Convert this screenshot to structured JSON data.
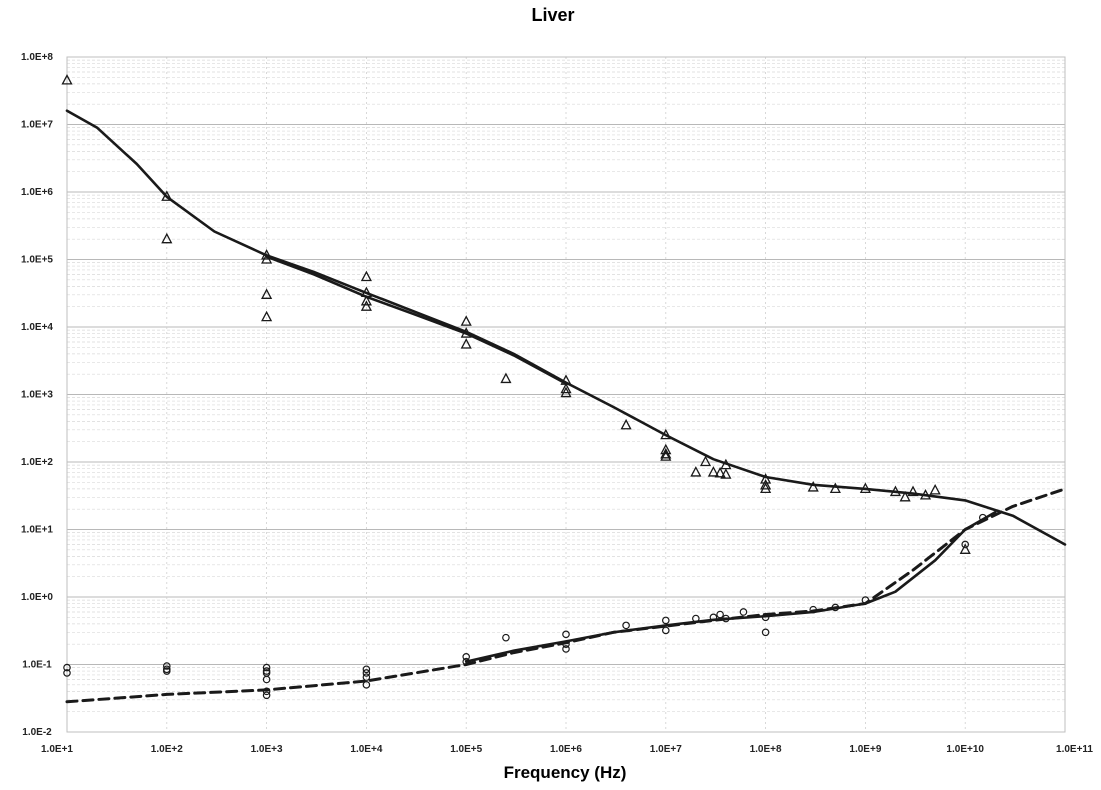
{
  "chart_data": {
    "type": "scatter",
    "title": "Liver",
    "xlabel": "Frequency (Hz)",
    "ylabel": "",
    "x_scale": "log",
    "y_scale": "log",
    "xlim": [
      10,
      100000000000
    ],
    "ylim": [
      0.01,
      100000000
    ],
    "grid": true,
    "x_ticks": [
      {
        "value": 10,
        "label": "1.0E+1"
      },
      {
        "value": 100,
        "label": "1.0E+2"
      },
      {
        "value": 1000,
        "label": "1.0E+3"
      },
      {
        "value": 10000,
        "label": "1.0E+4"
      },
      {
        "value": 100000,
        "label": "1.0E+5"
      },
      {
        "value": 1000000,
        "label": "1.0E+6"
      },
      {
        "value": 10000000,
        "label": "1.0E+7"
      },
      {
        "value": 100000000,
        "label": "1.0E+8"
      },
      {
        "value": 1000000000,
        "label": "1.0E+9"
      },
      {
        "value": 10000000000,
        "label": "1.0E+10"
      },
      {
        "value": 100000000000,
        "label": "1.0E+11"
      }
    ],
    "y_ticks": [
      {
        "value": 100000000,
        "label": "1.0E+8"
      },
      {
        "value": 10000000,
        "label": "1.0E+7"
      },
      {
        "value": 1000000,
        "label": "1.0E+6"
      },
      {
        "value": 100000,
        "label": "1.0E+5"
      },
      {
        "value": 10000,
        "label": "1.0E+4"
      },
      {
        "value": 1000,
        "label": "1.0E+3"
      },
      {
        "value": 100,
        "label": "1.0E+2"
      },
      {
        "value": 10,
        "label": "1.0E+1"
      },
      {
        "value": 1,
        "label": "1.0E+0"
      },
      {
        "value": 0.1,
        "label": "1.0E-1"
      },
      {
        "value": 0.01,
        "label": "1.0E-2"
      }
    ],
    "series": [
      {
        "kind": "model-line",
        "style": "solid",
        "color": "#1a1a1a",
        "x": [
          10,
          20,
          50,
          100,
          300,
          1000,
          3000,
          10000,
          30000,
          100000,
          300000,
          1000000,
          3000000,
          10000000,
          30000000,
          100000000,
          300000000,
          1000000000,
          3000000000,
          10000000000,
          30000000000,
          100000000000
        ],
        "y": [
          16000000,
          9000000,
          2600000,
          850000,
          260000,
          115000,
          65000,
          32000,
          17000,
          8500,
          4000,
          1500,
          650,
          250,
          110,
          60,
          46,
          40,
          34,
          27,
          16,
          6
        ]
      },
      {
        "kind": "model-line",
        "style": "solid",
        "color": "#1a1a1a",
        "x": [
          1000,
          3000,
          10000,
          30000,
          100000,
          300000,
          1000000
        ],
        "y": [
          110000,
          60000,
          28000,
          15500,
          8000,
          3800,
          1450
        ]
      },
      {
        "kind": "model-line",
        "style": "solid",
        "color": "#1a1a1a",
        "x": [
          100000,
          300000,
          1000000,
          3000000,
          10000000,
          30000000,
          100000000,
          300000000,
          1000000000,
          2000000000,
          5000000000,
          10000000000,
          20000000000
        ],
        "y": [
          0.11,
          0.16,
          0.22,
          0.3,
          0.38,
          0.46,
          0.52,
          0.6,
          0.8,
          1.2,
          3.5,
          10,
          18
        ]
      },
      {
        "kind": "model-line",
        "style": "dashed",
        "color": "#1a1a1a",
        "x": [
          10,
          100,
          1000,
          10000,
          100000,
          300000,
          1000000,
          3000000,
          10000000,
          30000000,
          100000000,
          300000000,
          1000000000,
          3000000000,
          10000000000,
          30000000000,
          100000000000
        ],
        "y": [
          0.028,
          0.036,
          0.042,
          0.057,
          0.1,
          0.15,
          0.21,
          0.3,
          0.37,
          0.45,
          0.55,
          0.62,
          0.8,
          2.5,
          10,
          22,
          40
        ]
      },
      {
        "kind": "permittivity-data",
        "marker": "triangle",
        "color": "#1a1a1a",
        "x": [
          10,
          100,
          100,
          1000,
          1000,
          1000,
          1000,
          10000,
          10000,
          10000,
          10000,
          100000,
          100000,
          100000,
          250000,
          1000000,
          1000000,
          1000000,
          4000000,
          10000000,
          10000000,
          10000000,
          10000000,
          20000000,
          25000000,
          30000000,
          35000000,
          40000000,
          40000000,
          100000000,
          100000000,
          100000000,
          300000000,
          500000000,
          1000000000,
          2000000000,
          2500000000,
          3000000000,
          4000000000,
          5000000000,
          10000000000
        ],
        "y": [
          45000000,
          850000,
          200000,
          115000,
          100000,
          30000,
          14000,
          55000,
          32000,
          24000,
          20000,
          12000,
          8000,
          5500,
          1700,
          1600,
          1200,
          1050,
          350,
          250,
          150,
          130,
          120,
          70,
          100,
          70,
          68,
          90,
          65,
          55,
          45,
          40,
          42,
          40,
          40,
          36,
          30,
          36,
          32,
          38,
          5
        ]
      },
      {
        "kind": "conductivity-data",
        "marker": "circle",
        "color": "#1a1a1a",
        "x": [
          10,
          10,
          100,
          100,
          100,
          1000,
          1000,
          1000,
          1000,
          1000,
          1000,
          10000,
          10000,
          10000,
          10000,
          100000,
          100000,
          250000,
          1000000,
          1000000,
          1000000,
          4000000,
          10000000,
          10000000,
          20000000,
          30000000,
          35000000,
          40000000,
          60000000,
          100000000,
          100000000,
          300000000,
          500000000,
          1000000000,
          10000000000,
          15000000000
        ],
        "y": [
          0.09,
          0.075,
          0.095,
          0.085,
          0.08,
          0.09,
          0.08,
          0.075,
          0.06,
          0.04,
          0.035,
          0.085,
          0.075,
          0.065,
          0.05,
          0.13,
          0.11,
          0.25,
          0.28,
          0.2,
          0.17,
          0.38,
          0.45,
          0.32,
          0.48,
          0.5,
          0.55,
          0.48,
          0.6,
          0.5,
          0.3,
          0.65,
          0.7,
          0.9,
          6,
          15
        ]
      }
    ]
  }
}
